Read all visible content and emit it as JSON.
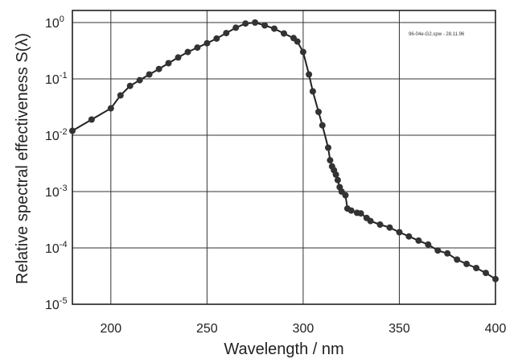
{
  "chart_data": {
    "type": "line",
    "log_y": true,
    "grid": true,
    "xlabel": "Wavelength / nm",
    "ylabel": "Relative spectral effectiveness S(λ)",
    "xlim": [
      180,
      400
    ],
    "ylim": [
      1e-05,
      1.5
    ],
    "x_ticks": [
      200,
      250,
      300,
      350,
      400
    ],
    "y_ticks": [
      {
        "value": 1,
        "base": "10",
        "exp": "0"
      },
      {
        "value": 0.1,
        "base": "10",
        "exp": "-1"
      },
      {
        "value": 0.01,
        "base": "10",
        "exp": "-2"
      },
      {
        "value": 0.001,
        "base": "10",
        "exp": "-3"
      },
      {
        "value": 0.0001,
        "base": "10",
        "exp": "-4"
      },
      {
        "value": 1e-05,
        "base": "10",
        "exp": "-5"
      }
    ],
    "annotation": "96-04e-G2.spw - 28.11.96",
    "series": [
      {
        "x": [
          180,
          190,
          200,
          205,
          210,
          215,
          220,
          225,
          230,
          235,
          240,
          245,
          250,
          255,
          260,
          265,
          270,
          275,
          280,
          285,
          290,
          295,
          297,
          300,
          303,
          305,
          308,
          310,
          313,
          314,
          315,
          316,
          317,
          318,
          319,
          320,
          322,
          323,
          325,
          328,
          330,
          333,
          335,
          340,
          345,
          350,
          355,
          360,
          365,
          370,
          375,
          380,
          385,
          390,
          395,
          400
        ],
        "y": [
          0.012,
          0.019,
          0.03,
          0.051,
          0.075,
          0.095,
          0.12,
          0.15,
          0.19,
          0.24,
          0.3,
          0.36,
          0.43,
          0.52,
          0.65,
          0.81,
          0.96,
          1.0,
          0.89,
          0.78,
          0.64,
          0.53,
          0.46,
          0.3,
          0.12,
          0.06,
          0.026,
          0.015,
          0.006,
          0.0036,
          0.0028,
          0.0024,
          0.002,
          0.0016,
          0.0012,
          0.001,
          0.00086,
          0.0005,
          0.00046,
          0.00042,
          0.00041,
          0.00034,
          0.0003,
          0.00026,
          0.00023,
          0.00019,
          0.00016,
          0.000135,
          0.000115,
          9e-05,
          8e-05,
          6.2e-05,
          5.2e-05,
          4.4e-05,
          3.6e-05,
          2.8e-05
        ]
      }
    ]
  }
}
